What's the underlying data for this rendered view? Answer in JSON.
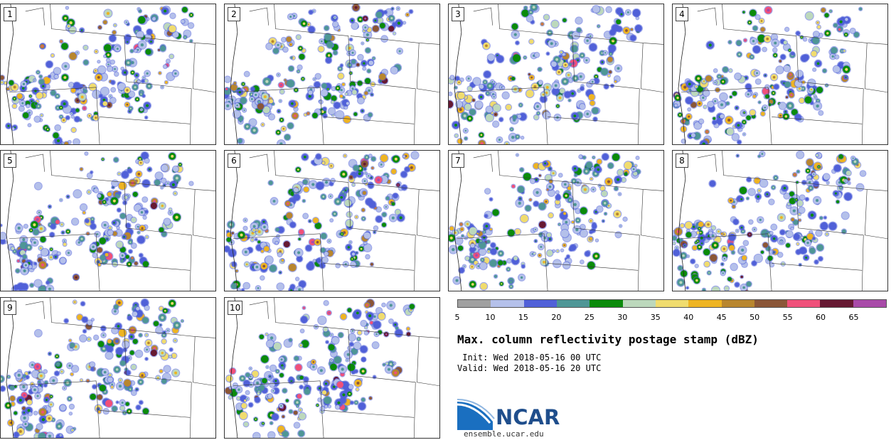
{
  "panels": [
    {
      "label": "1",
      "seed": 11
    },
    {
      "label": "2",
      "seed": 23
    },
    {
      "label": "3",
      "seed": 37
    },
    {
      "label": "4",
      "seed": 41
    },
    {
      "label": "5",
      "seed": 53
    },
    {
      "label": "6",
      "seed": 67
    },
    {
      "label": "7",
      "seed": 71
    },
    {
      "label": "8",
      "seed": 89
    },
    {
      "label": "9",
      "seed": 97
    },
    {
      "label": "10",
      "seed": 103
    }
  ],
  "legend": {
    "colors": [
      "#a0a0a0",
      "#b4c0ea",
      "#5060d8",
      "#4e9696",
      "#0a8b0a",
      "#bcd8bc",
      "#f0dc6e",
      "#eeb422",
      "#b8862e",
      "#8b5637",
      "#f0507a",
      "#661932",
      "#a84aa8"
    ],
    "ticks": [
      "5",
      "10",
      "15",
      "20",
      "25",
      "30",
      "35",
      "40",
      "45",
      "50",
      "55",
      "60",
      "65"
    ]
  },
  "title": "Max. column reflectivity postage stamp (dBZ)",
  "init": " Init: Wed 2018-05-16 00 UTC",
  "valid": "Valid: Wed 2018-05-16 20 UTC",
  "logo": {
    "text": "NCAR",
    "site": "ensemble.ucar.edu"
  }
}
